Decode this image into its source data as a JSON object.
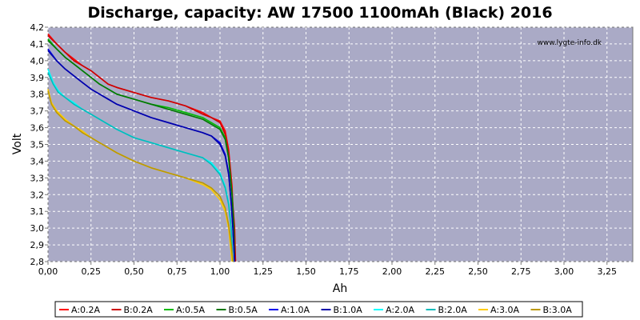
{
  "chart_data": {
    "type": "line",
    "title": "Discharge, capacity: AW 17500 1100mAh (Black) 2016",
    "xlabel": "Ah",
    "ylabel": "Volt",
    "xlim": [
      0,
      3.4
    ],
    "ylim": [
      2.8,
      4.2
    ],
    "grid": true,
    "x_ticks": [
      "0,00",
      "0,25",
      "0,50",
      "0,75",
      "1,00",
      "1,25",
      "1,50",
      "1,75",
      "2,00",
      "2,25",
      "2,50",
      "2,75",
      "3,00",
      "3,25"
    ],
    "y_ticks": [
      "2,8",
      "2,9",
      "3,0",
      "3,1",
      "3,2",
      "3,3",
      "3,4",
      "3,5",
      "3,6",
      "3,7",
      "3,8",
      "3,9",
      "4,0",
      "4,1",
      "4,2"
    ],
    "watermark": "www.lygte-info.dk",
    "legend_position": "bottom",
    "series": [
      {
        "name": "A:0.2A",
        "color": "#ff0000",
        "points": [
          [
            0,
            4.16
          ],
          [
            0.05,
            4.1
          ],
          [
            0.1,
            4.05
          ],
          [
            0.15,
            4.01
          ],
          [
            0.2,
            3.97
          ],
          [
            0.25,
            3.94
          ],
          [
            0.3,
            3.9
          ],
          [
            0.35,
            3.86
          ],
          [
            0.4,
            3.84
          ],
          [
            0.5,
            3.81
          ],
          [
            0.6,
            3.78
          ],
          [
            0.7,
            3.76
          ],
          [
            0.8,
            3.73
          ],
          [
            0.9,
            3.69
          ],
          [
            0.95,
            3.66
          ],
          [
            1.0,
            3.64
          ],
          [
            1.03,
            3.58
          ],
          [
            1.05,
            3.47
          ],
          [
            1.07,
            3.25
          ],
          [
            1.08,
            3.0
          ],
          [
            1.09,
            2.8
          ]
        ]
      },
      {
        "name": "B:0.2A",
        "color": "#cc0000",
        "points": [
          [
            0,
            4.15
          ],
          [
            0.05,
            4.1
          ],
          [
            0.1,
            4.05
          ],
          [
            0.15,
            4.0
          ],
          [
            0.2,
            3.97
          ],
          [
            0.25,
            3.94
          ],
          [
            0.3,
            3.9
          ],
          [
            0.35,
            3.86
          ],
          [
            0.4,
            3.84
          ],
          [
            0.5,
            3.81
          ],
          [
            0.6,
            3.78
          ],
          [
            0.7,
            3.76
          ],
          [
            0.8,
            3.73
          ],
          [
            0.9,
            3.68
          ],
          [
            0.95,
            3.66
          ],
          [
            1.0,
            3.63
          ],
          [
            1.03,
            3.56
          ],
          [
            1.05,
            3.45
          ],
          [
            1.07,
            3.2
          ],
          [
            1.085,
            3.0
          ],
          [
            1.09,
            2.8
          ]
        ]
      },
      {
        "name": "A:0.5A",
        "color": "#00bb00",
        "points": [
          [
            0,
            4.13
          ],
          [
            0.05,
            4.07
          ],
          [
            0.1,
            4.02
          ],
          [
            0.15,
            3.98
          ],
          [
            0.2,
            3.94
          ],
          [
            0.25,
            3.9
          ],
          [
            0.3,
            3.86
          ],
          [
            0.35,
            3.83
          ],
          [
            0.4,
            3.8
          ],
          [
            0.5,
            3.77
          ],
          [
            0.6,
            3.74
          ],
          [
            0.7,
            3.72
          ],
          [
            0.8,
            3.69
          ],
          [
            0.9,
            3.66
          ],
          [
            0.95,
            3.63
          ],
          [
            1.0,
            3.6
          ],
          [
            1.03,
            3.54
          ],
          [
            1.05,
            3.42
          ],
          [
            1.07,
            3.2
          ],
          [
            1.08,
            3.0
          ],
          [
            1.085,
            2.8
          ]
        ]
      },
      {
        "name": "B:0.5A",
        "color": "#007700",
        "points": [
          [
            0,
            4.12
          ],
          [
            0.05,
            4.07
          ],
          [
            0.1,
            4.02
          ],
          [
            0.15,
            3.98
          ],
          [
            0.2,
            3.94
          ],
          [
            0.25,
            3.9
          ],
          [
            0.3,
            3.86
          ],
          [
            0.35,
            3.83
          ],
          [
            0.4,
            3.8
          ],
          [
            0.5,
            3.77
          ],
          [
            0.6,
            3.74
          ],
          [
            0.7,
            3.71
          ],
          [
            0.8,
            3.68
          ],
          [
            0.9,
            3.65
          ],
          [
            0.95,
            3.62
          ],
          [
            1.0,
            3.59
          ],
          [
            1.03,
            3.53
          ],
          [
            1.05,
            3.42
          ],
          [
            1.07,
            3.2
          ],
          [
            1.08,
            3.0
          ],
          [
            1.085,
            2.8
          ]
        ]
      },
      {
        "name": "A:1.0A",
        "color": "#0000ee",
        "points": [
          [
            0,
            4.07
          ],
          [
            0.05,
            4.0
          ],
          [
            0.1,
            3.95
          ],
          [
            0.15,
            3.91
          ],
          [
            0.2,
            3.87
          ],
          [
            0.25,
            3.83
          ],
          [
            0.3,
            3.8
          ],
          [
            0.35,
            3.77
          ],
          [
            0.4,
            3.74
          ],
          [
            0.5,
            3.7
          ],
          [
            0.6,
            3.66
          ],
          [
            0.7,
            3.63
          ],
          [
            0.8,
            3.6
          ],
          [
            0.9,
            3.57
          ],
          [
            0.95,
            3.55
          ],
          [
            1.0,
            3.51
          ],
          [
            1.03,
            3.44
          ],
          [
            1.05,
            3.33
          ],
          [
            1.065,
            3.15
          ],
          [
            1.075,
            3.0
          ],
          [
            1.085,
            2.8
          ]
        ]
      },
      {
        "name": "B:1.0A",
        "color": "#0000aa",
        "points": [
          [
            0,
            4.06
          ],
          [
            0.05,
            4.0
          ],
          [
            0.1,
            3.95
          ],
          [
            0.15,
            3.91
          ],
          [
            0.2,
            3.87
          ],
          [
            0.25,
            3.83
          ],
          [
            0.3,
            3.8
          ],
          [
            0.35,
            3.77
          ],
          [
            0.4,
            3.74
          ],
          [
            0.5,
            3.7
          ],
          [
            0.6,
            3.66
          ],
          [
            0.7,
            3.63
          ],
          [
            0.8,
            3.6
          ],
          [
            0.9,
            3.57
          ],
          [
            0.95,
            3.55
          ],
          [
            1.0,
            3.5
          ],
          [
            1.03,
            3.43
          ],
          [
            1.05,
            3.32
          ],
          [
            1.065,
            3.15
          ],
          [
            1.075,
            3.0
          ],
          [
            1.085,
            2.8
          ]
        ]
      },
      {
        "name": "A:2.0A",
        "color": "#00ffff",
        "points": [
          [
            0,
            3.95
          ],
          [
            0.03,
            3.87
          ],
          [
            0.06,
            3.82
          ],
          [
            0.1,
            3.78
          ],
          [
            0.15,
            3.75
          ],
          [
            0.2,
            3.71
          ],
          [
            0.25,
            3.68
          ],
          [
            0.3,
            3.65
          ],
          [
            0.35,
            3.62
          ],
          [
            0.4,
            3.59
          ],
          [
            0.5,
            3.54
          ],
          [
            0.6,
            3.51
          ],
          [
            0.7,
            3.48
          ],
          [
            0.8,
            3.45
          ],
          [
            0.9,
            3.42
          ],
          [
            0.95,
            3.39
          ],
          [
            1.0,
            3.33
          ],
          [
            1.03,
            3.25
          ],
          [
            1.05,
            3.15
          ],
          [
            1.065,
            3.0
          ],
          [
            1.075,
            2.8
          ]
        ]
      },
      {
        "name": "B:2.0A",
        "color": "#00bbbb",
        "points": [
          [
            0,
            3.93
          ],
          [
            0.03,
            3.86
          ],
          [
            0.06,
            3.81
          ],
          [
            0.1,
            3.78
          ],
          [
            0.15,
            3.74
          ],
          [
            0.2,
            3.71
          ],
          [
            0.25,
            3.68
          ],
          [
            0.3,
            3.65
          ],
          [
            0.35,
            3.62
          ],
          [
            0.4,
            3.59
          ],
          [
            0.5,
            3.54
          ],
          [
            0.6,
            3.51
          ],
          [
            0.7,
            3.48
          ],
          [
            0.8,
            3.45
          ],
          [
            0.9,
            3.42
          ],
          [
            0.95,
            3.38
          ],
          [
            1.0,
            3.32
          ],
          [
            1.03,
            3.24
          ],
          [
            1.05,
            3.14
          ],
          [
            1.065,
            3.0
          ],
          [
            1.075,
            2.8
          ]
        ]
      },
      {
        "name": "A:3.0A",
        "color": "#ffcc00",
        "points": [
          [
            0,
            3.83
          ],
          [
            0.02,
            3.75
          ],
          [
            0.05,
            3.7
          ],
          [
            0.1,
            3.65
          ],
          [
            0.15,
            3.61
          ],
          [
            0.2,
            3.58
          ],
          [
            0.25,
            3.54
          ],
          [
            0.3,
            3.51
          ],
          [
            0.35,
            3.48
          ],
          [
            0.4,
            3.45
          ],
          [
            0.5,
            3.4
          ],
          [
            0.6,
            3.36
          ],
          [
            0.7,
            3.33
          ],
          [
            0.8,
            3.3
          ],
          [
            0.9,
            3.26
          ],
          [
            0.95,
            3.23
          ],
          [
            1.0,
            3.17
          ],
          [
            1.03,
            3.1
          ],
          [
            1.05,
            3.0
          ],
          [
            1.06,
            2.9
          ],
          [
            1.07,
            2.8
          ]
        ]
      },
      {
        "name": "B:3.0A",
        "color": "#bb9900",
        "points": [
          [
            0,
            3.82
          ],
          [
            0.02,
            3.74
          ],
          [
            0.05,
            3.69
          ],
          [
            0.1,
            3.64
          ],
          [
            0.15,
            3.61
          ],
          [
            0.2,
            3.57
          ],
          [
            0.25,
            3.54
          ],
          [
            0.3,
            3.51
          ],
          [
            0.35,
            3.48
          ],
          [
            0.4,
            3.45
          ],
          [
            0.5,
            3.4
          ],
          [
            0.6,
            3.36
          ],
          [
            0.7,
            3.33
          ],
          [
            0.8,
            3.3
          ],
          [
            0.9,
            3.27
          ],
          [
            0.95,
            3.24
          ],
          [
            1.0,
            3.19
          ],
          [
            1.03,
            3.12
          ],
          [
            1.05,
            3.02
          ],
          [
            1.065,
            2.9
          ],
          [
            1.075,
            2.8
          ]
        ]
      }
    ]
  }
}
